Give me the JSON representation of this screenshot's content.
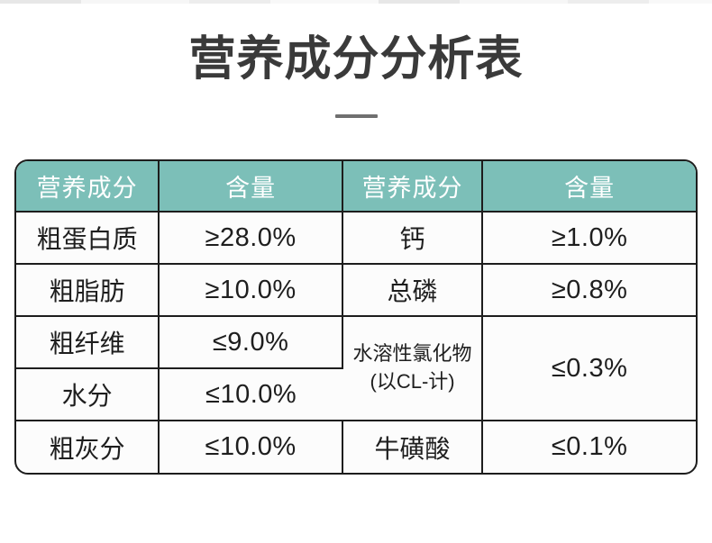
{
  "page": {
    "background": "#ffffff",
    "top_strip_color": "#ededed"
  },
  "title": {
    "text": "营养成分分析表",
    "color": "#3a3a3a",
    "divider_color": "#6f6f6f"
  },
  "table": {
    "accent_color": "#7cbfb8",
    "border_color": "#1d1d1d",
    "header_text_color": "#ffffff",
    "body_text_color": "#1e1e1e",
    "headers": [
      "营养成分",
      "含量",
      "营养成分",
      "含量"
    ],
    "rows": [
      {
        "c0": "粗蛋白质",
        "c1": "≥28.0%",
        "c2": "钙",
        "c3": "≥1.0%"
      },
      {
        "c0": "粗脂肪",
        "c1": "≥10.0%",
        "c2": "总磷",
        "c3": "≥0.8%"
      },
      {
        "c0": "粗纤维",
        "c1": "≤9.0%",
        "c2_line1": "水溶性氯化物",
        "c2_line2": "(以CL-计)",
        "c2_rowspan": 2,
        "c3": "≤0.3%",
        "c3_rowspan": 2
      },
      {
        "c0": "水分",
        "c1": "≤10.0%"
      },
      {
        "c0": "粗灰分",
        "c1": "≤10.0%",
        "c2": "牛磺酸",
        "c3": "≤0.1%"
      }
    ]
  }
}
